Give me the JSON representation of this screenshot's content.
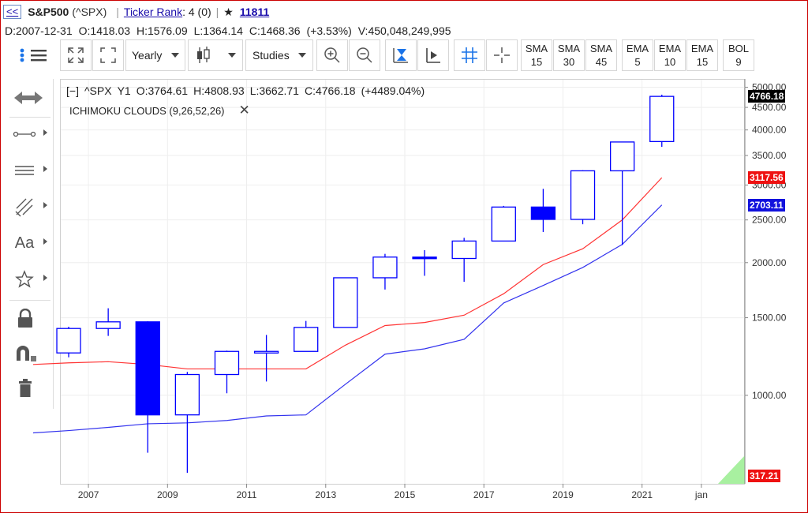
{
  "title_row": {
    "back_label": "<<",
    "symbol": "S&P500",
    "symbol_code": "(^SPX)",
    "separator": "|",
    "ticker_rank_label": "Ticker Rank",
    "ticker_rank_value": ": 4 (0)",
    "star_glyph": "★",
    "watch_count": "11811"
  },
  "ohlc_row": {
    "date": "D:2007-12-31",
    "open": "O:1418.03",
    "high": "H:1576.09",
    "low": "L:1364.14",
    "close": "C:1468.36",
    "change": "(+3.53%)",
    "volume": "V:450,048,249,995"
  },
  "toolbar": {
    "period_label": "Yearly",
    "studies_label": "Studies",
    "indicator_buttons": [
      {
        "name": "SMA",
        "value": "15"
      },
      {
        "name": "SMA",
        "value": "30"
      },
      {
        "name": "SMA",
        "value": "45"
      },
      {
        "name": "EMA",
        "value": "5"
      },
      {
        "name": "EMA",
        "value": "10"
      },
      {
        "name": "EMA",
        "value": "15"
      },
      {
        "name": "BOL",
        "value": "9"
      }
    ]
  },
  "sidebar": {
    "text_tool_label": "Aa"
  },
  "chart_header": {
    "collapse": "[−]",
    "symbol": "^SPX",
    "interval": "Y1",
    "open": "O:3764.61",
    "high": "H:4808.93",
    "low": "L:3662.71",
    "close": "C:4766.18",
    "change": "(+4489.04%)"
  },
  "study": {
    "label": "ICHIMOKU CLOUDS (9,26,52,26)",
    "close_glyph": "✕"
  },
  "price_tags": {
    "last": "4766.18",
    "red_line": "3117.56",
    "blue_line": "2703.11",
    "bottom": "317.21"
  },
  "colors": {
    "up_candle": "#0000ff",
    "down_candle_fill": "#0000ff",
    "red_line": "#ff3333",
    "blue_line": "#3333ee",
    "last_tag": "#000000",
    "red_tag": "#ee1111",
    "blue_tag": "#1111dd",
    "cloud_green": "#a8f0a0",
    "toolbar_icon_blue": "#1a73e8"
  },
  "chart_data": {
    "type": "candlestick",
    "scale": "log",
    "ylim": [
      630,
      5200
    ],
    "y_ticks": [
      "5000.00",
      "4500.00",
      "4000.00",
      "3500.00",
      "3000.00",
      "2500.00",
      "2000.00",
      "1500.00",
      "1000.00"
    ],
    "x_ticks": [
      "2007",
      "2009",
      "2011",
      "2013",
      "2015",
      "2017",
      "2019",
      "2021",
      "jan"
    ],
    "candles": [
      {
        "year": 2006,
        "open": 1248,
        "high": 1431,
        "low": 1220,
        "close": 1418
      },
      {
        "year": 2007,
        "open": 1418,
        "high": 1576,
        "low": 1364,
        "close": 1468
      },
      {
        "year": 2008,
        "open": 1468,
        "high": 1472,
        "low": 741,
        "close": 903
      },
      {
        "year": 2009,
        "open": 903,
        "high": 1130,
        "low": 667,
        "close": 1115
      },
      {
        "year": 2010,
        "open": 1115,
        "high": 1263,
        "low": 1011,
        "close": 1258
      },
      {
        "year": 2011,
        "open": 1258,
        "high": 1371,
        "low": 1075,
        "close": 1258
      },
      {
        "year": 2012,
        "open": 1258,
        "high": 1475,
        "low": 1258,
        "close": 1426
      },
      {
        "year": 2013,
        "open": 1426,
        "high": 1849,
        "low": 1426,
        "close": 1848
      },
      {
        "year": 2014,
        "open": 1848,
        "high": 2094,
        "low": 1738,
        "close": 2059
      },
      {
        "year": 2015,
        "open": 2059,
        "high": 2135,
        "low": 1867,
        "close": 2044
      },
      {
        "year": 2016,
        "open": 2044,
        "high": 2277,
        "low": 1810,
        "close": 2239
      },
      {
        "year": 2017,
        "open": 2239,
        "high": 2690,
        "low": 2239,
        "close": 2674
      },
      {
        "year": 2018,
        "open": 2674,
        "high": 2941,
        "low": 2347,
        "close": 2507
      },
      {
        "year": 2019,
        "open": 2507,
        "high": 3240,
        "low": 2444,
        "close": 3231
      },
      {
        "year": 2020,
        "open": 3231,
        "high": 3760,
        "low": 2192,
        "close": 3756
      },
      {
        "year": 2021,
        "open": 3764.61,
        "high": 4808.93,
        "low": 3662.71,
        "close": 4766.18
      }
    ],
    "series": [
      {
        "values": [
          1175,
          1185,
          1192,
          1175,
          1148,
          1148,
          1148,
          1148,
          1300,
          1440,
          1463,
          1520,
          1700,
          1980,
          2150,
          2500,
          3117.56
        ],
        "years": [
          2005.6,
          2006.5,
          2007.5,
          2008.5,
          2009.5,
          2010.5,
          2011.5,
          2012.5,
          2013.5,
          2014.5,
          2015.5,
          2016.5,
          2017.5,
          2018.5,
          2019.5,
          2020.5,
          2021.5
        ]
      },
      {
        "values": [
          822,
          832,
          846,
          862,
          866,
          877,
          898,
          903,
          1060,
          1240,
          1275,
          1340,
          1620,
          1775,
          1950,
          2200,
          2703.11
        ],
        "years": [
          2005.6,
          2006.5,
          2007.5,
          2008.5,
          2009.5,
          2010.5,
          2011.5,
          2012.5,
          2013.5,
          2014.5,
          2015.5,
          2016.5,
          2017.5,
          2018.5,
          2019.5,
          2020.5,
          2021.5
        ]
      }
    ],
    "grid": true
  }
}
